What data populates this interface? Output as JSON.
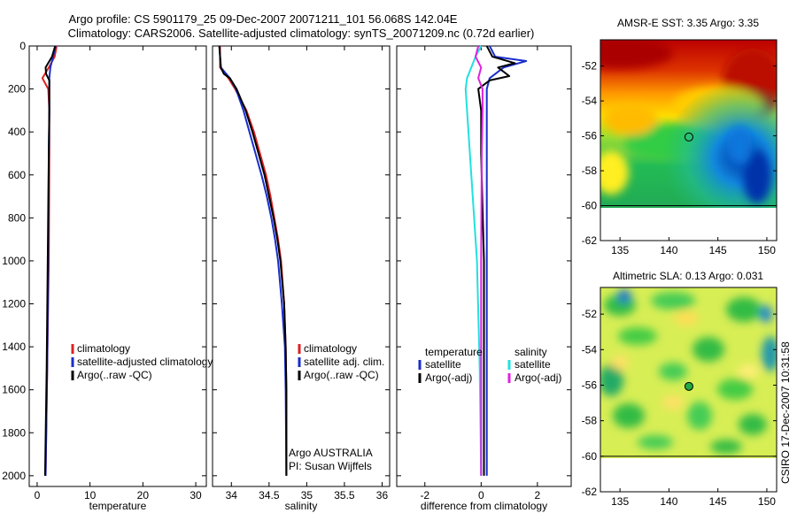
{
  "header": {
    "line1": "Argo profile: CS 5901179_25 09-Dec-2007 20071211_101 56.068S 142.04E",
    "line2": "Climatology: CARS2006. Satellite-adjusted climatology: synTS_20071209.nc (0.72d earlier)"
  },
  "colors": {
    "climatology": "#dd2222",
    "satellite": "#1a2ecc",
    "argo": "#000000",
    "satellite_diff": "#22e0e0",
    "argo_adj": "#e020e0"
  },
  "credit": "CSIRO 17-Dec-2007 10:31:58",
  "chart_data": [
    {
      "type": "line",
      "xlabel": "temperature",
      "ylabel": "",
      "xlim": [
        -1.5,
        32
      ],
      "ylim": [
        2050,
        0
      ],
      "xticks": [
        "0",
        "10",
        "20",
        "30"
      ],
      "xtick_values": [
        0,
        10,
        20,
        30
      ],
      "yticks": [
        "0",
        "200",
        "400",
        "600",
        "800",
        "1000",
        "1200",
        "1400",
        "1600",
        "1800",
        "2000"
      ],
      "ytick_values": [
        0,
        200,
        400,
        600,
        800,
        1000,
        1200,
        1400,
        1600,
        1800,
        2000
      ],
      "legend": {
        "placement": "right",
        "entries": [
          {
            "label": "climatology",
            "color": "#dd2222"
          },
          {
            "label": "satellite-adjusted climatology",
            "color": "#1a2ecc"
          },
          {
            "label": "Argo(..raw -QC)",
            "color": "#000000"
          }
        ]
      },
      "series": [
        {
          "color": "#dd2222",
          "depth": [
            0,
            50,
            100,
            150,
            200,
            300,
            500,
            1000,
            1500,
            2000
          ],
          "values": [
            3.7,
            3.3,
            2.2,
            1.0,
            2.1,
            2.3,
            2.3,
            2.2,
            1.9,
            1.6
          ]
        },
        {
          "color": "#1a2ecc",
          "depth": [
            0,
            50,
            100,
            150,
            200,
            300,
            500,
            1000,
            1500,
            2000
          ],
          "values": [
            3.5,
            3.0,
            2.5,
            2.3,
            2.3,
            2.3,
            2.2,
            2.1,
            1.9,
            1.6
          ]
        },
        {
          "color": "#000000",
          "depth": [
            0,
            50,
            100,
            130,
            160,
            200,
            300,
            500,
            1000,
            1500,
            2000
          ],
          "values": [
            3.4,
            2.8,
            1.6,
            1.7,
            2.3,
            2.3,
            2.3,
            2.2,
            2.0,
            1.8,
            1.5
          ]
        }
      ]
    },
    {
      "type": "line",
      "xlabel": "salinity",
      "ylabel": "",
      "xlim": [
        33.75,
        36.1
      ],
      "ylim": [
        2050,
        0
      ],
      "xticks": [
        "34",
        "34.5",
        "35",
        "35.5",
        "36"
      ],
      "xtick_values": [
        34,
        34.5,
        35,
        35.5,
        36
      ],
      "legend": {
        "placement": "right",
        "entries": [
          {
            "label": "climatology",
            "color": "#dd2222"
          },
          {
            "label": "satellite adj. clim.",
            "color": "#1a2ecc"
          },
          {
            "label": "Argo(..raw -QC)",
            "color": "#000000"
          }
        ]
      },
      "annotation": [
        "Argo AUSTRALIA",
        "PI: Susan Wijffels"
      ],
      "series": [
        {
          "color": "#dd2222",
          "depth": [
            0,
            100,
            150,
            200,
            300,
            400,
            500,
            600,
            700,
            800,
            900,
            1000,
            1200,
            1400,
            1600,
            2000
          ],
          "values": [
            33.85,
            33.85,
            33.96,
            34.05,
            34.2,
            34.3,
            34.38,
            34.46,
            34.52,
            34.57,
            34.62,
            34.66,
            34.7,
            34.72,
            34.73,
            34.73
          ]
        },
        {
          "color": "#1a2ecc",
          "depth": [
            0,
            100,
            150,
            200,
            300,
            400,
            500,
            600,
            700,
            800,
            900,
            1000,
            1200,
            1400,
            1600,
            2000
          ],
          "values": [
            33.84,
            33.86,
            33.98,
            34.06,
            34.16,
            34.24,
            34.32,
            34.4,
            34.47,
            34.53,
            34.58,
            34.62,
            34.67,
            34.71,
            34.72,
            34.73
          ]
        },
        {
          "color": "#000000",
          "depth": [
            0,
            100,
            130,
            150,
            200,
            300,
            400,
            500,
            600,
            700,
            800,
            900,
            1000,
            1200,
            1400,
            1600,
            2000
          ],
          "values": [
            33.84,
            33.86,
            33.9,
            33.98,
            34.07,
            34.19,
            34.28,
            34.36,
            34.44,
            34.5,
            34.56,
            34.61,
            34.65,
            34.7,
            34.72,
            34.73,
            34.73
          ]
        }
      ]
    },
    {
      "type": "line",
      "xlabel": "difference from climatology",
      "ylabel": "",
      "xlim": [
        -3,
        3.2
      ],
      "ylim": [
        2050,
        0
      ],
      "xticks": [
        "-2",
        "0",
        "2"
      ],
      "xtick_values": [
        -2,
        0,
        2
      ],
      "legend": {
        "placement": "bottom",
        "columns": [
          {
            "header": "temperature",
            "entries": [
              {
                "label": "satellite",
                "color": "#1a2ecc"
              },
              {
                "label": "Argo(-adj)",
                "color": "#000000"
              }
            ]
          },
          {
            "header": "salinity",
            "entries": [
              {
                "label": "satellite",
                "color": "#22e0e0"
              },
              {
                "label": "Argo(-adj)",
                "color": "#e020e0"
              }
            ]
          }
        ]
      },
      "series": [
        {
          "color": "#1a2ecc",
          "depth": [
            0,
            50,
            70,
            100,
            150,
            200,
            300,
            500,
            1000,
            1500,
            2000
          ],
          "values": [
            0.3,
            0.5,
            1.6,
            0.8,
            0.3,
            0.2,
            0.2,
            0.2,
            0.2,
            0.2,
            0.2
          ]
        },
        {
          "color": "#000000",
          "depth": [
            0,
            50,
            80,
            100,
            140,
            160,
            200,
            300,
            500,
            1000,
            1500,
            2000
          ],
          "values": [
            0.2,
            0.4,
            1.2,
            0.6,
            1.0,
            0.3,
            -0.1,
            0.0,
            0.0,
            0.1,
            0.1,
            0.1
          ]
        },
        {
          "color": "#22e0e0",
          "depth": [
            0,
            50,
            150,
            200,
            300,
            500,
            800,
            1000,
            1500,
            2000
          ],
          "values": [
            0.0,
            -0.2,
            -0.5,
            -0.55,
            -0.5,
            -0.4,
            -0.25,
            -0.15,
            -0.05,
            0.0
          ]
        },
        {
          "color": "#e020e0",
          "depth": [
            0,
            50,
            100,
            150,
            200,
            300,
            500,
            1000,
            1500,
            2000
          ],
          "values": [
            -0.1,
            -0.2,
            0.0,
            -0.1,
            0.05,
            0.05,
            0.02,
            0.0,
            0.0,
            0.0
          ]
        }
      ]
    },
    {
      "type": "heatmap",
      "title": "AMSR-E SST: 3.35 Argo: 3.35",
      "xlim": [
        133,
        151
      ],
      "ylim": [
        -62,
        -50.5
      ],
      "xticks": [
        "135",
        "140",
        "145",
        "150"
      ],
      "xtick_values": [
        135,
        140,
        145,
        150
      ],
      "yticks": [
        "-52",
        "-54",
        "-56",
        "-58",
        "-60",
        "-62"
      ],
      "ytick_values": [
        -52,
        -54,
        -56,
        -58,
        -60,
        -62
      ],
      "data_extent_lat": [
        -60,
        -50.5
      ],
      "marker": {
        "lon": 142.04,
        "lat": -56.068
      }
    },
    {
      "type": "heatmap",
      "title": "Altimetric SLA: 0.13 Argo: 0.031",
      "xlim": [
        133,
        151
      ],
      "ylim": [
        -62,
        -50.5
      ],
      "xticks": [
        "135",
        "140",
        "145",
        "150"
      ],
      "xtick_values": [
        135,
        140,
        145,
        150
      ],
      "yticks": [
        "-52",
        "-54",
        "-56",
        "-58",
        "-60",
        "-62"
      ],
      "ytick_values": [
        -52,
        -54,
        -56,
        -58,
        -60,
        -62
      ],
      "data_extent_lat": [
        -60,
        -50.5
      ],
      "marker": {
        "lon": 142.04,
        "lat": -56.068
      }
    }
  ]
}
